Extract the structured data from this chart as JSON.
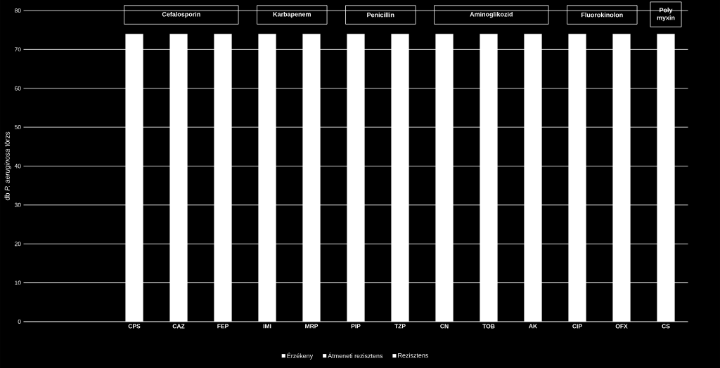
{
  "chart_data": {
    "type": "bar",
    "ylabel": "db *P. aeruginosa* törzs",
    "categories": [
      null,
      null,
      "CPS",
      "CAZ",
      "FEP",
      "IMI",
      "MRP",
      "PIP",
      "TZP",
      "CN",
      "TOB",
      "AK",
      "CIP",
      "OFX",
      "CS"
    ],
    "series": [
      {
        "name": "Érzékeny",
        "color": "#ffffff",
        "values": [
          null,
          null,
          74,
          74,
          74,
          74,
          74,
          74,
          74,
          74,
          74,
          74,
          74,
          74,
          74
        ]
      },
      {
        "name": "Átmeneti rezisztens",
        "color": "#ffffff",
        "values": [
          null,
          null,
          null,
          null,
          null,
          null,
          null,
          null,
          null,
          null,
          null,
          null,
          null,
          null,
          null
        ]
      },
      {
        "name": "Rezisztens",
        "color": "#ffffff",
        "values": [
          null,
          null,
          null,
          null,
          null,
          null,
          null,
          null,
          null,
          null,
          null,
          null,
          null,
          null,
          null
        ]
      }
    ],
    "ylim": [
      0,
      80
    ],
    "yticks": [
      0,
      10,
      20,
      30,
      40,
      50,
      60,
      70,
      80
    ],
    "grid": "y",
    "legend": "bottom",
    "annotations": [
      "Cefalosporin",
      "Karbapenem",
      "Penicillin",
      "Aminoglikozid",
      "Fluorokinolon",
      "Poly myxin"
    ]
  }
}
